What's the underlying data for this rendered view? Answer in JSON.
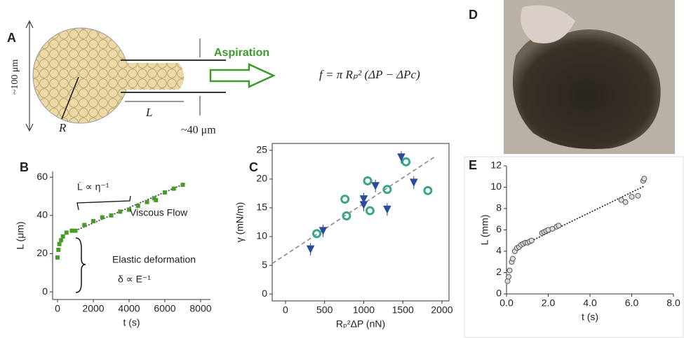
{
  "diagram": {
    "label": "A",
    "scale": "~100 μm",
    "action": "Aspiration",
    "radius": "R",
    "length": "L",
    "pipette": "~40 μm",
    "formula": "f = π Rₚ² (ΔP − ΔPc)"
  },
  "photo": {
    "label": "D"
  },
  "chart_data": [
    {
      "type": "scatter",
      "label": "B",
      "xlabel": "t (s)",
      "ylabel": "L (μm)",
      "xlim": [
        -275,
        8550
      ],
      "ylim": [
        -4,
        63
      ],
      "xticks": [
        0,
        2000,
        4000,
        6000,
        8000
      ],
      "yticks": [
        0,
        20,
        40,
        60
      ],
      "annotations": [
        "L̇ ∝ η⁻¹",
        "Viscous Flow",
        "Elastic deformation",
        "δ ∝ E⁻¹"
      ],
      "series": [
        {
          "color": "#4c9a2a",
          "marker": "square",
          "x": [
            0,
            50,
            100,
            200,
            300,
            500,
            800,
            1000,
            1500,
            2000,
            2500,
            3000,
            3500,
            4000,
            4500,
            5000,
            5400,
            5500,
            6000,
            6500,
            7000
          ],
          "values": [
            18,
            22,
            25,
            27,
            29,
            31,
            32,
            32,
            35,
            37,
            39,
            40,
            42,
            43,
            45,
            47,
            49,
            48,
            52,
            54,
            56
          ]
        }
      ],
      "trend": {
        "color": "#333333",
        "x": [
          1000,
          7200
        ],
        "values": [
          32,
          57
        ]
      }
    },
    {
      "type": "scatter",
      "label": "C",
      "xlabel": "Rₚ²ΔP (nN)",
      "ylabel": "γ (mN/m)",
      "xlim": [
        -170,
        2090
      ],
      "ylim": [
        -1.2,
        26.2
      ],
      "xticks": [
        0,
        500,
        1000,
        1500,
        2000
      ],
      "yticks": [
        0,
        5,
        10,
        15,
        20,
        25
      ],
      "series": [
        {
          "color": "#3aa58a",
          "marker": "ring",
          "x": [
            400,
            760,
            780,
            1050,
            1080,
            1300,
            1540,
            1820
          ],
          "values": [
            10.5,
            16.5,
            13.6,
            19.7,
            14.5,
            18.2,
            23,
            18
          ]
        },
        {
          "color": "#2b4c9b",
          "marker": "triangle",
          "x": [
            320,
            480,
            1000,
            1000,
            1150,
            1300,
            1480,
            1640
          ],
          "values": [
            7.8,
            11,
            15.5,
            16.5,
            18.8,
            14.7,
            23.8,
            19.4
          ]
        }
      ],
      "trend": {
        "color": "#888888",
        "x": [
          -170,
          1900
        ],
        "values": [
          5.3,
          23.8
        ]
      }
    },
    {
      "type": "scatter",
      "label": "E",
      "xlabel": "t (s)",
      "ylabel": "L (mm)",
      "xlim": [
        0,
        8
      ],
      "ylim": [
        0,
        12
      ],
      "xticks": [
        {
          "value": 0,
          "label": "0.0"
        },
        {
          "value": 2,
          "label": "2.0"
        },
        {
          "value": 4,
          "label": "4.0"
        },
        {
          "value": 6,
          "label": "6.0"
        },
        {
          "value": 8,
          "label": "8.0"
        }
      ],
      "yticks": [
        0,
        2,
        4,
        6,
        8,
        10,
        12
      ],
      "series": [
        {
          "color": "#555555",
          "marker": "circle",
          "x": [
            0.05,
            0.1,
            0.15,
            0.25,
            0.3,
            0.4,
            0.5,
            0.6,
            0.7,
            0.8,
            0.9,
            1.0,
            1.1,
            1.2,
            1.7,
            1.8,
            1.9,
            2.0,
            2.2,
            2.4,
            2.5,
            5.5,
            5.7,
            6.0,
            6.3,
            6.55,
            6.6
          ],
          "values": [
            1.2,
            1.6,
            2.2,
            3,
            3.3,
            4,
            4.3,
            4.4,
            4.6,
            4.7,
            4.8,
            4.8,
            4.9,
            5,
            5.7,
            5.8,
            5.9,
            6,
            6.1,
            6.3,
            6.4,
            8.8,
            8.6,
            9.1,
            9.2,
            10.6,
            10.8
          ]
        }
      ],
      "trend": {
        "color": "#222222",
        "x": [
          0.7,
          6.6
        ],
        "values": [
          4.5,
          10.1
        ]
      }
    }
  ]
}
